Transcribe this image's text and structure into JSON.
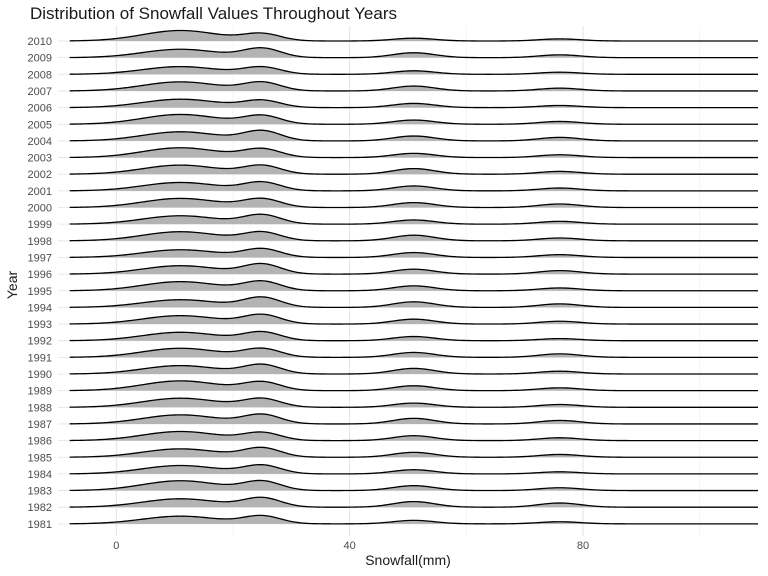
{
  "chart_data": {
    "type": "ridgeline",
    "title": "Distribution of Snowfall Values Throughout Years",
    "xlabel": "Snowfall(mm)",
    "ylabel": "Year",
    "xlim": [
      -10,
      110
    ],
    "x_ticks": [
      0,
      40,
      80
    ],
    "grid": true,
    "fill_color": "#b3b3b3",
    "line_color": "#000000",
    "density_peaks_mm": [
      11,
      25,
      51,
      76
    ],
    "years": [
      "1981",
      "1982",
      "1983",
      "1984",
      "1985",
      "1986",
      "1987",
      "1988",
      "1989",
      "1990",
      "1991",
      "1992",
      "1993",
      "1994",
      "1995",
      "1996",
      "1997",
      "1998",
      "1999",
      "2000",
      "2001",
      "2002",
      "2003",
      "2004",
      "2005",
      "2006",
      "2007",
      "2008",
      "2009",
      "2010"
    ],
    "peak_heights": [
      [
        0.55,
        0.55,
        0.25,
        0.15
      ],
      [
        0.6,
        0.65,
        0.4,
        0.3
      ],
      [
        0.7,
        0.65,
        0.35,
        0.2
      ],
      [
        0.6,
        0.6,
        0.3,
        0.15
      ],
      [
        0.6,
        0.65,
        0.35,
        0.2
      ],
      [
        0.65,
        0.55,
        0.35,
        0.2
      ],
      [
        0.65,
        0.65,
        0.4,
        0.25
      ],
      [
        0.65,
        0.6,
        0.3,
        0.2
      ],
      [
        0.7,
        0.6,
        0.35,
        0.2
      ],
      [
        0.6,
        0.65,
        0.4,
        0.2
      ],
      [
        0.65,
        0.6,
        0.35,
        0.25
      ],
      [
        0.6,
        0.6,
        0.3,
        0.15
      ],
      [
        0.6,
        0.65,
        0.35,
        0.2
      ],
      [
        0.55,
        0.7,
        0.4,
        0.25
      ],
      [
        0.65,
        0.65,
        0.35,
        0.2
      ],
      [
        0.6,
        0.7,
        0.35,
        0.25
      ],
      [
        0.55,
        0.6,
        0.35,
        0.2
      ],
      [
        0.65,
        0.6,
        0.4,
        0.2
      ],
      [
        0.6,
        0.65,
        0.3,
        0.2
      ],
      [
        0.65,
        0.6,
        0.35,
        0.25
      ],
      [
        0.6,
        0.6,
        0.35,
        0.2
      ],
      [
        0.65,
        0.6,
        0.4,
        0.2
      ],
      [
        0.7,
        0.6,
        0.3,
        0.2
      ],
      [
        0.65,
        0.7,
        0.35,
        0.25
      ],
      [
        0.7,
        0.6,
        0.3,
        0.2
      ],
      [
        0.6,
        0.5,
        0.3,
        0.15
      ],
      [
        0.65,
        0.6,
        0.35,
        0.2
      ],
      [
        0.55,
        0.5,
        0.25,
        0.15
      ],
      [
        0.6,
        0.65,
        0.35,
        0.2
      ],
      [
        0.75,
        0.5,
        0.2,
        0.15
      ]
    ]
  }
}
